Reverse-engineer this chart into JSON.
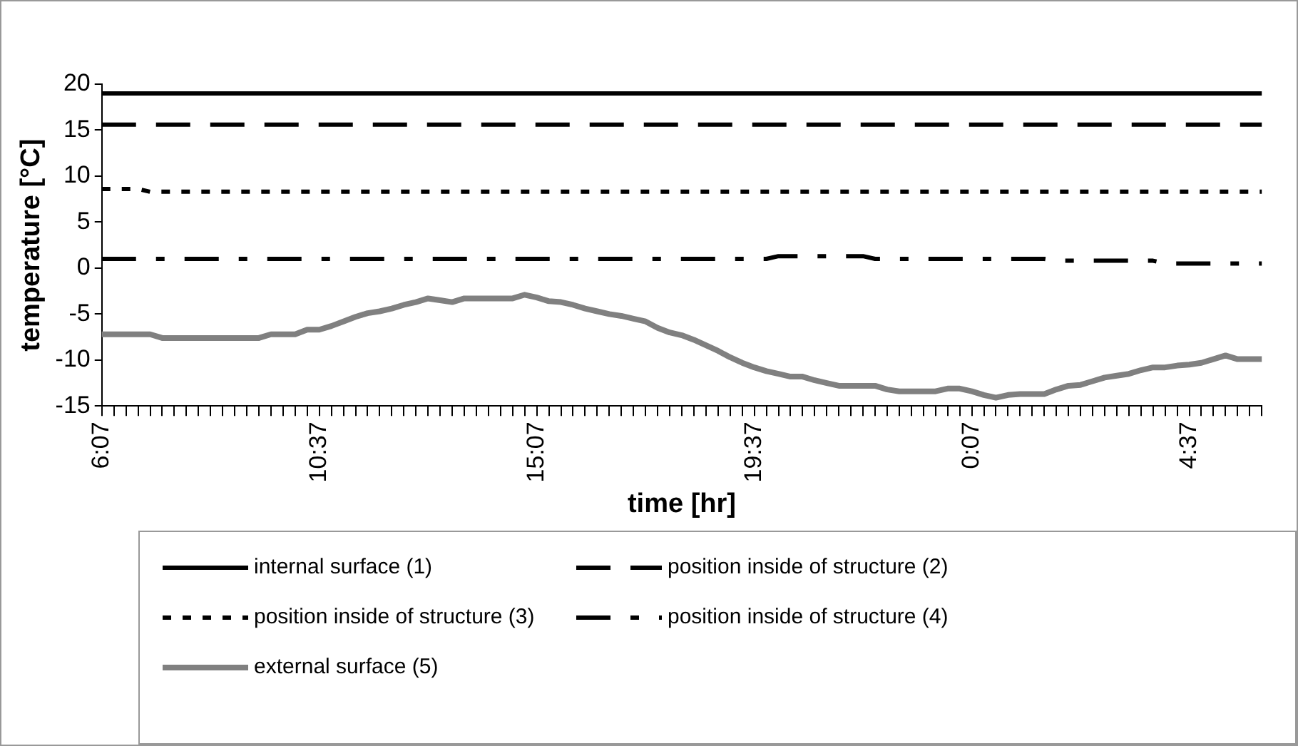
{
  "chart_data": {
    "type": "line",
    "xlabel": "time [hr]",
    "ylabel": "temperature [°C]",
    "ylim": [
      -15,
      20
    ],
    "yticks": [
      -15,
      -10,
      -5,
      0,
      5,
      10,
      15,
      20
    ],
    "grid": false,
    "legend": "bottom",
    "marker": "none",
    "categories": [
      "6:07",
      null,
      null,
      null,
      null,
      null,
      null,
      null,
      null,
      null,
      null,
      null,
      null,
      null,
      null,
      null,
      null,
      null,
      "10:37",
      null,
      null,
      null,
      null,
      null,
      null,
      null,
      null,
      null,
      null,
      null,
      null,
      null,
      null,
      null,
      null,
      null,
      "15:07",
      null,
      null,
      null,
      null,
      null,
      null,
      null,
      null,
      null,
      null,
      null,
      null,
      null,
      null,
      null,
      null,
      null,
      "19:37",
      null,
      null,
      null,
      null,
      null,
      null,
      null,
      null,
      null,
      null,
      null,
      null,
      null,
      null,
      null,
      null,
      null,
      "0:07",
      null,
      null,
      null,
      null,
      null,
      null,
      null,
      null,
      null,
      null,
      null,
      null,
      null,
      null,
      null,
      null,
      null,
      "4:37",
      null,
      null,
      null,
      null,
      null,
      null
    ],
    "series": [
      {
        "name": "internal surface (1)",
        "color": "#000000",
        "line_style": "solid",
        "values": [
          19,
          19,
          19,
          19,
          19,
          19,
          19,
          19,
          19,
          19,
          19,
          19,
          19,
          19,
          19,
          19,
          19,
          19,
          19,
          19,
          19,
          19,
          19,
          19,
          19,
          19,
          19,
          19,
          19,
          19,
          19,
          19,
          19,
          19,
          19,
          19,
          19,
          19,
          19,
          19,
          19,
          19,
          19,
          19,
          19,
          19,
          19,
          19,
          19,
          19,
          19,
          19,
          19,
          19,
          19,
          19,
          19,
          19,
          19,
          19,
          19,
          19,
          19,
          19,
          19,
          19,
          19,
          19,
          19,
          19,
          19,
          19,
          19,
          19,
          19,
          19,
          19,
          19,
          19,
          19,
          19,
          19,
          19,
          19,
          19,
          19,
          19,
          19,
          19,
          19,
          19,
          19,
          19,
          19,
          19,
          19,
          19
        ]
      },
      {
        "name": "position inside of structure (2)",
        "color": "#000000",
        "line_style": "dashed",
        "values": [
          15.6,
          15.6,
          15.6,
          15.6,
          15.6,
          15.6,
          15.6,
          15.6,
          15.6,
          15.6,
          15.6,
          15.6,
          15.6,
          15.6,
          15.6,
          15.6,
          15.6,
          15.6,
          15.6,
          15.6,
          15.6,
          15.6,
          15.6,
          15.6,
          15.6,
          15.6,
          15.6,
          15.6,
          15.6,
          15.6,
          15.6,
          15.6,
          15.6,
          15.6,
          15.6,
          15.6,
          15.6,
          15.6,
          15.6,
          15.6,
          15.6,
          15.6,
          15.6,
          15.6,
          15.6,
          15.6,
          15.6,
          15.6,
          15.6,
          15.6,
          15.6,
          15.6,
          15.6,
          15.6,
          15.6,
          15.6,
          15.6,
          15.6,
          15.6,
          15.6,
          15.6,
          15.6,
          15.6,
          15.6,
          15.6,
          15.6,
          15.6,
          15.6,
          15.6,
          15.6,
          15.6,
          15.6,
          15.6,
          15.6,
          15.6,
          15.6,
          15.6,
          15.6,
          15.6,
          15.6,
          15.6,
          15.6,
          15.6,
          15.6,
          15.6,
          15.6,
          15.6,
          15.6,
          15.6,
          15.6,
          15.6,
          15.6,
          15.6,
          15.6,
          15.6,
          15.6,
          15.6
        ]
      },
      {
        "name": "position inside of structure (3)",
        "color": "#000000",
        "line_style": "dotted",
        "values": [
          8.6,
          8.6,
          8.6,
          8.6,
          8.3,
          8.3,
          8.3,
          8.3,
          8.3,
          8.3,
          8.3,
          8.3,
          8.3,
          8.3,
          8.3,
          8.3,
          8.3,
          8.3,
          8.3,
          8.3,
          8.3,
          8.3,
          8.3,
          8.3,
          8.3,
          8.3,
          8.3,
          8.3,
          8.3,
          8.3,
          8.3,
          8.3,
          8.3,
          8.3,
          8.3,
          8.3,
          8.3,
          8.3,
          8.3,
          8.3,
          8.3,
          8.3,
          8.3,
          8.3,
          8.3,
          8.3,
          8.3,
          8.3,
          8.3,
          8.3,
          8.3,
          8.3,
          8.3,
          8.3,
          8.3,
          8.3,
          8.3,
          8.3,
          8.3,
          8.3,
          8.3,
          8.3,
          8.3,
          8.3,
          8.3,
          8.3,
          8.3,
          8.3,
          8.3,
          8.3,
          8.3,
          8.3,
          8.3,
          8.3,
          8.3,
          8.3,
          8.3,
          8.3,
          8.3,
          8.3,
          8.3,
          8.3,
          8.3,
          8.3,
          8.3,
          8.3,
          8.3,
          8.3,
          8.3,
          8.3,
          8.3,
          8.3,
          8.3,
          8.3,
          8.3,
          8.3,
          8.3
        ]
      },
      {
        "name": "position inside of structure (4)",
        "color": "#000000",
        "line_style": "dashdot",
        "values": [
          1,
          1,
          1,
          1,
          1,
          1,
          1,
          1,
          1,
          1,
          1,
          1,
          1,
          1,
          1,
          1,
          1,
          1,
          1,
          1,
          1,
          1,
          1,
          1,
          1,
          1,
          1,
          1,
          1,
          1,
          1,
          1,
          1,
          1,
          1,
          1,
          1,
          1,
          1,
          1,
          1,
          1,
          1,
          1,
          1,
          1,
          1,
          1,
          1,
          1,
          1,
          1,
          1,
          1,
          1,
          1,
          1.3,
          1.3,
          1.3,
          1.3,
          1.3,
          1.3,
          1.3,
          1.3,
          1,
          1,
          1,
          1,
          1,
          1,
          1,
          1,
          1,
          1,
          1,
          1,
          1,
          1,
          1,
          0.8,
          0.8,
          0.8,
          0.8,
          0.8,
          0.8,
          0.8,
          0.8,
          0.8,
          0.5,
          0.5,
          0.5,
          0.5,
          0.5,
          0.5,
          0.5,
          0.5,
          0.5
        ]
      },
      {
        "name": "external surface (5)",
        "color": "#808080",
        "line_style": "solid",
        "values": [
          -7.2,
          -7.2,
          -7.2,
          -7.2,
          -7.2,
          -7.6,
          -7.6,
          -7.6,
          -7.6,
          -7.6,
          -7.6,
          -7.6,
          -7.6,
          -7.6,
          -7.2,
          -7.2,
          -7.2,
          -6.7,
          -6.7,
          -6.3,
          -5.8,
          -5.3,
          -4.9,
          -4.7,
          -4.4,
          -4,
          -3.7,
          -3.3,
          -3.5,
          -3.7,
          -3.3,
          -3.3,
          -3.3,
          -3.3,
          -3.3,
          -2.9,
          -3.2,
          -3.6,
          -3.7,
          -4,
          -4.4,
          -4.7,
          -5,
          -5.2,
          -5.5,
          -5.8,
          -6.5,
          -7,
          -7.3,
          -7.8,
          -8.4,
          -9,
          -9.7,
          -10.3,
          -10.8,
          -11.2,
          -11.5,
          -11.8,
          -11.8,
          -12.2,
          -12.5,
          -12.8,
          -12.8,
          -12.8,
          -12.8,
          -13.2,
          -13.4,
          -13.4,
          -13.4,
          -13.4,
          -13.1,
          -13.1,
          -13.4,
          -13.8,
          -14.1,
          -13.8,
          -13.7,
          -13.7,
          -13.7,
          -13.2,
          -12.8,
          -12.7,
          -12.3,
          -11.9,
          -11.7,
          -11.5,
          -11.1,
          -10.8,
          -10.8,
          -10.6,
          -10.5,
          -10.3,
          -9.9,
          -9.5,
          -9.9,
          -9.9,
          -9.9
        ]
      }
    ]
  }
}
